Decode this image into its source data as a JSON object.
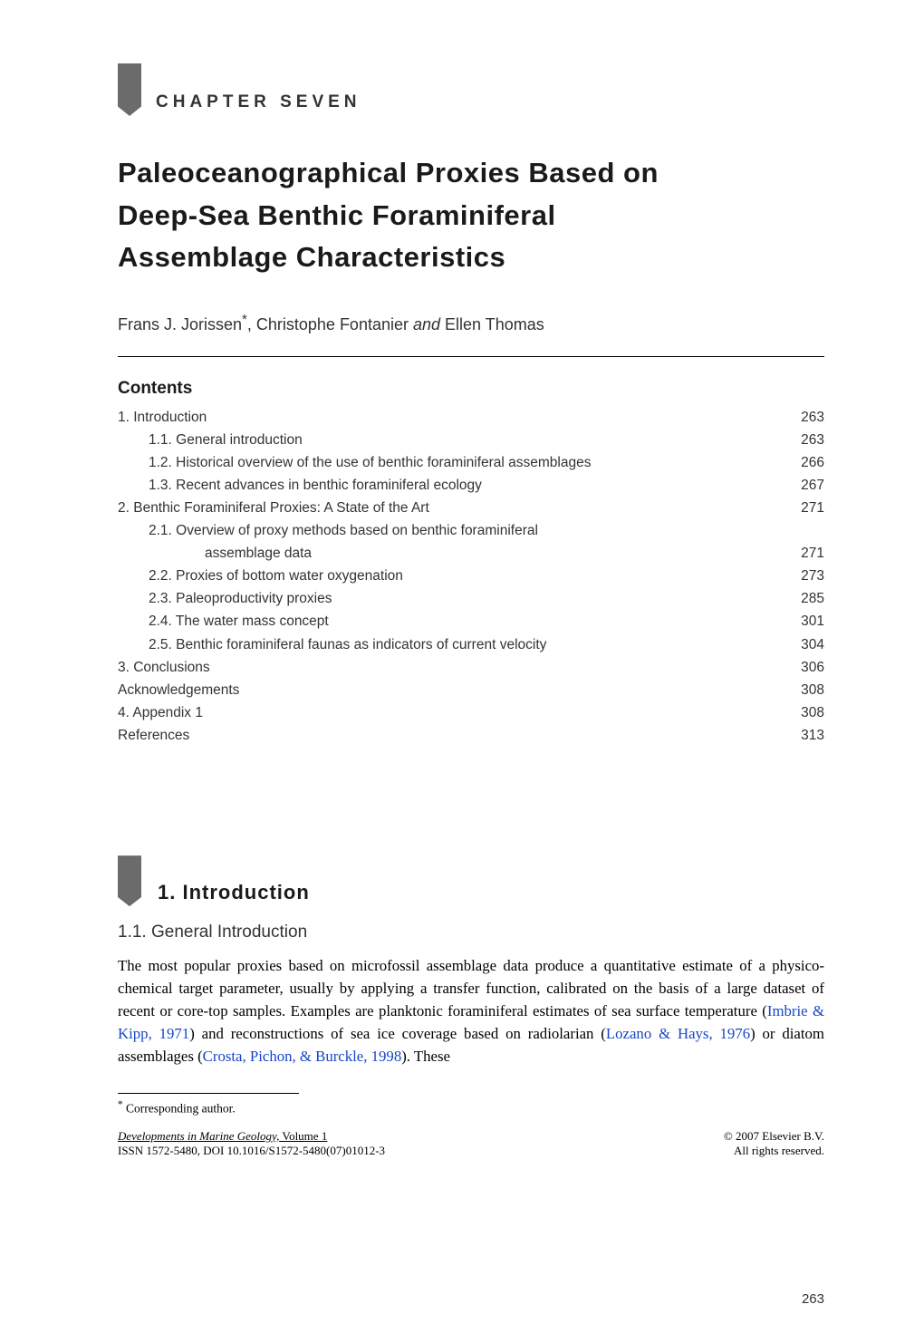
{
  "chapter_label": "CHAPTER SEVEN",
  "title_line1": "Paleoceanographical Proxies Based on",
  "title_line2": "Deep-Sea Benthic Foraminiferal",
  "title_line3": "Assemblage Characteristics",
  "authors_prefix": "Frans J. Jorissen",
  "authors_star": "*",
  "authors_mid": ", Christophe Fontanier ",
  "authors_and": "and",
  "authors_suffix": " Ellen Thomas",
  "contents_heading": "Contents",
  "toc": [
    {
      "indent": "ind1",
      "label": "1.  Introduction",
      "page": "263"
    },
    {
      "indent": "ind2",
      "label": "1.1.  General introduction",
      "page": "263"
    },
    {
      "indent": "ind2",
      "label": "1.2.  Historical overview of the use of benthic foraminiferal assemblages",
      "page": "266"
    },
    {
      "indent": "ind2",
      "label": "1.3.  Recent advances in benthic foraminiferal ecology",
      "page": "267"
    },
    {
      "indent": "ind1",
      "label": "2.  Benthic Foraminiferal Proxies: A State of the Art",
      "page": "271"
    },
    {
      "indent": "ind2",
      "label": "2.1.  Overview of proxy methods based on benthic foraminiferal",
      "page": ""
    },
    {
      "indent": "ind3",
      "label": "assemblage data",
      "page": "271"
    },
    {
      "indent": "ind2",
      "label": "2.2.  Proxies of bottom water oxygenation",
      "page": "273"
    },
    {
      "indent": "ind2",
      "label": "2.3.  Paleoproductivity proxies",
      "page": "285"
    },
    {
      "indent": "ind2",
      "label": "2.4.  The water mass concept",
      "page": "301"
    },
    {
      "indent": "ind2",
      "label": "2.5.  Benthic foraminiferal faunas as indicators of current velocity",
      "page": "304"
    },
    {
      "indent": "ind1",
      "label": "3.  Conclusions",
      "page": "306"
    },
    {
      "indent": "ind1",
      "label": "Acknowledgements",
      "page": "308"
    },
    {
      "indent": "ind1",
      "label": "4.  Appendix 1",
      "page": "308"
    },
    {
      "indent": "ind1",
      "label": "References",
      "page": "313"
    }
  ],
  "section_head": "1. Introduction",
  "subsection_head": "1.1. General Introduction",
  "para": {
    "t1": "The most popular proxies based on microfossil assemblage data produce a quanti­tative estimate of a physico-chemical target parameter, usually by applying a transfer function, calibrated on the basis of a large dataset of recent or core-top samples. Examples are planktonic foraminiferal estimates of sea surface temperature (",
    "l1": "Imbrie & Kipp, 1971",
    "t2": ") and reconstructions of sea ice coverage based on radiolarian (",
    "l2": "Lozano & Hays, 1976",
    "t3": ") or diatom assemblages (",
    "l3": "Crosta, Pichon, & Burckle, 1998",
    "t4": "). These"
  },
  "footnote_marker": "*",
  "footnote_text": " Corresponding author.",
  "footer": {
    "left_line1_ital": "Developments in Marine Geology,",
    "left_line1_rest": " Volume 1",
    "left_line2": "ISSN 1572-5480, DOI 10.1016/S1572-5480(07)01012-3",
    "right_line1": "© 2007 Elsevier B.V.",
    "right_line2": "All rights reserved."
  },
  "page_number": "263",
  "colors": {
    "link": "#1747c7",
    "arrow": "#6b6b6b",
    "text_dark": "#1a1a1a",
    "text_med": "#333333"
  }
}
